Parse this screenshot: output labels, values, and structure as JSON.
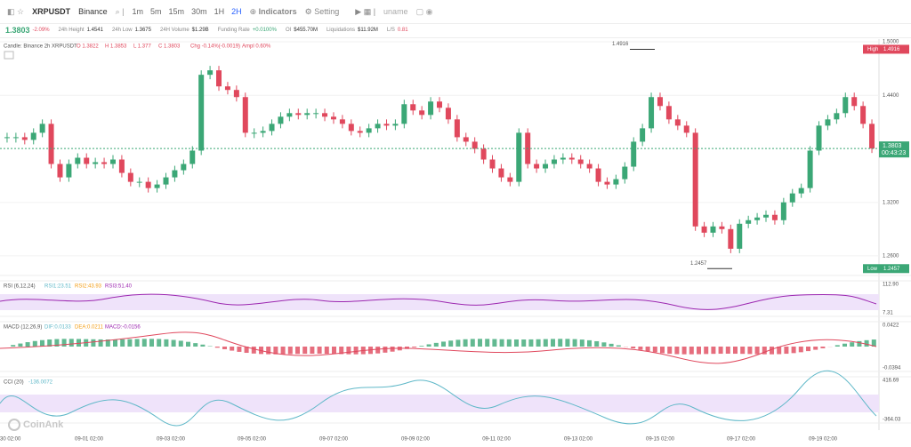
{
  "toolbar": {
    "symbol": "XRPUSDT",
    "exchange": "Binance",
    "intervals": [
      "1m",
      "5m",
      "15m",
      "30m",
      "1H",
      "2H"
    ],
    "indicators": "Indicators",
    "setting": "Setting",
    "user": "uname"
  },
  "stats": {
    "price": "1.3803",
    "change": "-2.09%",
    "items": [
      {
        "label": "24h Height",
        "value": "1.4541"
      },
      {
        "label": "24h Low",
        "value": "1.3675"
      },
      {
        "label": "24H Volume",
        "value": "$1.29B"
      },
      {
        "label": "Funding Rate",
        "value": "+0.0100%"
      },
      {
        "label": "OI",
        "value": "$455.70M"
      },
      {
        "label": "Liquidations",
        "value": "$11.92M"
      },
      {
        "label": "L/S",
        "value": "0.81"
      }
    ]
  },
  "legend": {
    "title": "Candle: Binance 2h XRPUSDT",
    "items": [
      "O 1.3822",
      "H 1.3853",
      "L 1.377",
      "C 1.3803",
      "Chg -0.14%(-0.0019)",
      "Ampl 0.60%"
    ]
  },
  "chart_data": {
    "type": "candlestick",
    "closes": [
      1.393,
      1.393,
      1.39,
      1.398,
      1.408,
      1.363,
      1.348,
      1.363,
      1.37,
      1.363,
      1.365,
      1.363,
      1.368,
      1.353,
      1.343,
      1.343,
      1.336,
      1.34,
      1.348,
      1.356,
      1.363,
      1.378,
      1.463,
      1.468,
      1.45,
      1.446,
      1.438,
      1.398,
      1.398,
      1.4,
      1.408,
      1.416,
      1.42,
      1.418,
      1.42,
      1.42,
      1.416,
      1.413,
      1.408,
      1.4,
      1.398,
      1.403,
      1.408,
      1.406,
      1.408,
      1.43,
      1.423,
      1.418,
      1.433,
      1.426,
      1.413,
      1.393,
      1.388,
      1.38,
      1.368,
      1.358,
      1.348,
      1.343,
      1.398,
      1.363,
      1.358,
      1.363,
      1.368,
      1.37,
      1.368,
      1.363,
      1.358,
      1.343,
      1.34,
      1.346,
      1.36,
      1.388,
      1.403,
      1.438,
      1.428,
      1.413,
      1.406,
      1.398,
      1.293,
      1.286,
      1.293,
      1.29,
      1.268,
      1.296,
      1.3,
      1.303,
      1.306,
      1.3,
      1.32,
      1.33,
      1.336,
      1.378,
      1.406,
      1.413,
      1.42,
      1.438,
      1.428,
      1.408,
      1.3803
    ],
    "ylim": [
      1.238,
      1.503
    ],
    "yticks": [
      {
        "value": 1.5,
        "label": "1.5000"
      },
      {
        "value": 1.44,
        "label": "1.4400"
      },
      {
        "value": 1.32,
        "label": "1.3200"
      },
      {
        "value": 1.26,
        "label": "1.2600"
      }
    ],
    "high": {
      "value": 1.4916,
      "label": "1.4916"
    },
    "low": {
      "value": 1.2457,
      "label": "1.2457"
    },
    "last": {
      "value": 1.3803,
      "label": "1.3803"
    },
    "high_tag": "High",
    "low_tag": "Low",
    "countdown": "00:43:23",
    "colors": {
      "up": "#3ba776",
      "down": "#e0485d"
    },
    "xlabels": [
      "30 02:00",
      "09-01 02:00",
      "09-03 02:00",
      "09-05 02:00",
      "09-07 02:00",
      "09-09 02:00",
      "09-11 02:00",
      "09-13 02:00",
      "09-15 02:00",
      "09-17 02:00",
      "09-19 02:00"
    ]
  },
  "indicators": [
    {
      "name": "RSI (6,12,24)",
      "values": [
        "RSI1:23.51",
        "RSI2:43.93",
        "RSI3:51.40"
      ],
      "axis": [
        "112.90",
        "7.31"
      ]
    },
    {
      "name": "MACD (12,26,9)",
      "values": [
        "DIF:0.0133",
        "DEA:0.0211",
        "MACD:-0.0156"
      ],
      "axis": [
        "0.0422",
        "-0.0394"
      ]
    },
    {
      "name": "CCI (20)",
      "values": [
        "-136.0072"
      ],
      "axis": [
        "416.69",
        "-364.03"
      ]
    }
  ],
  "watermark": "CoinAnk"
}
